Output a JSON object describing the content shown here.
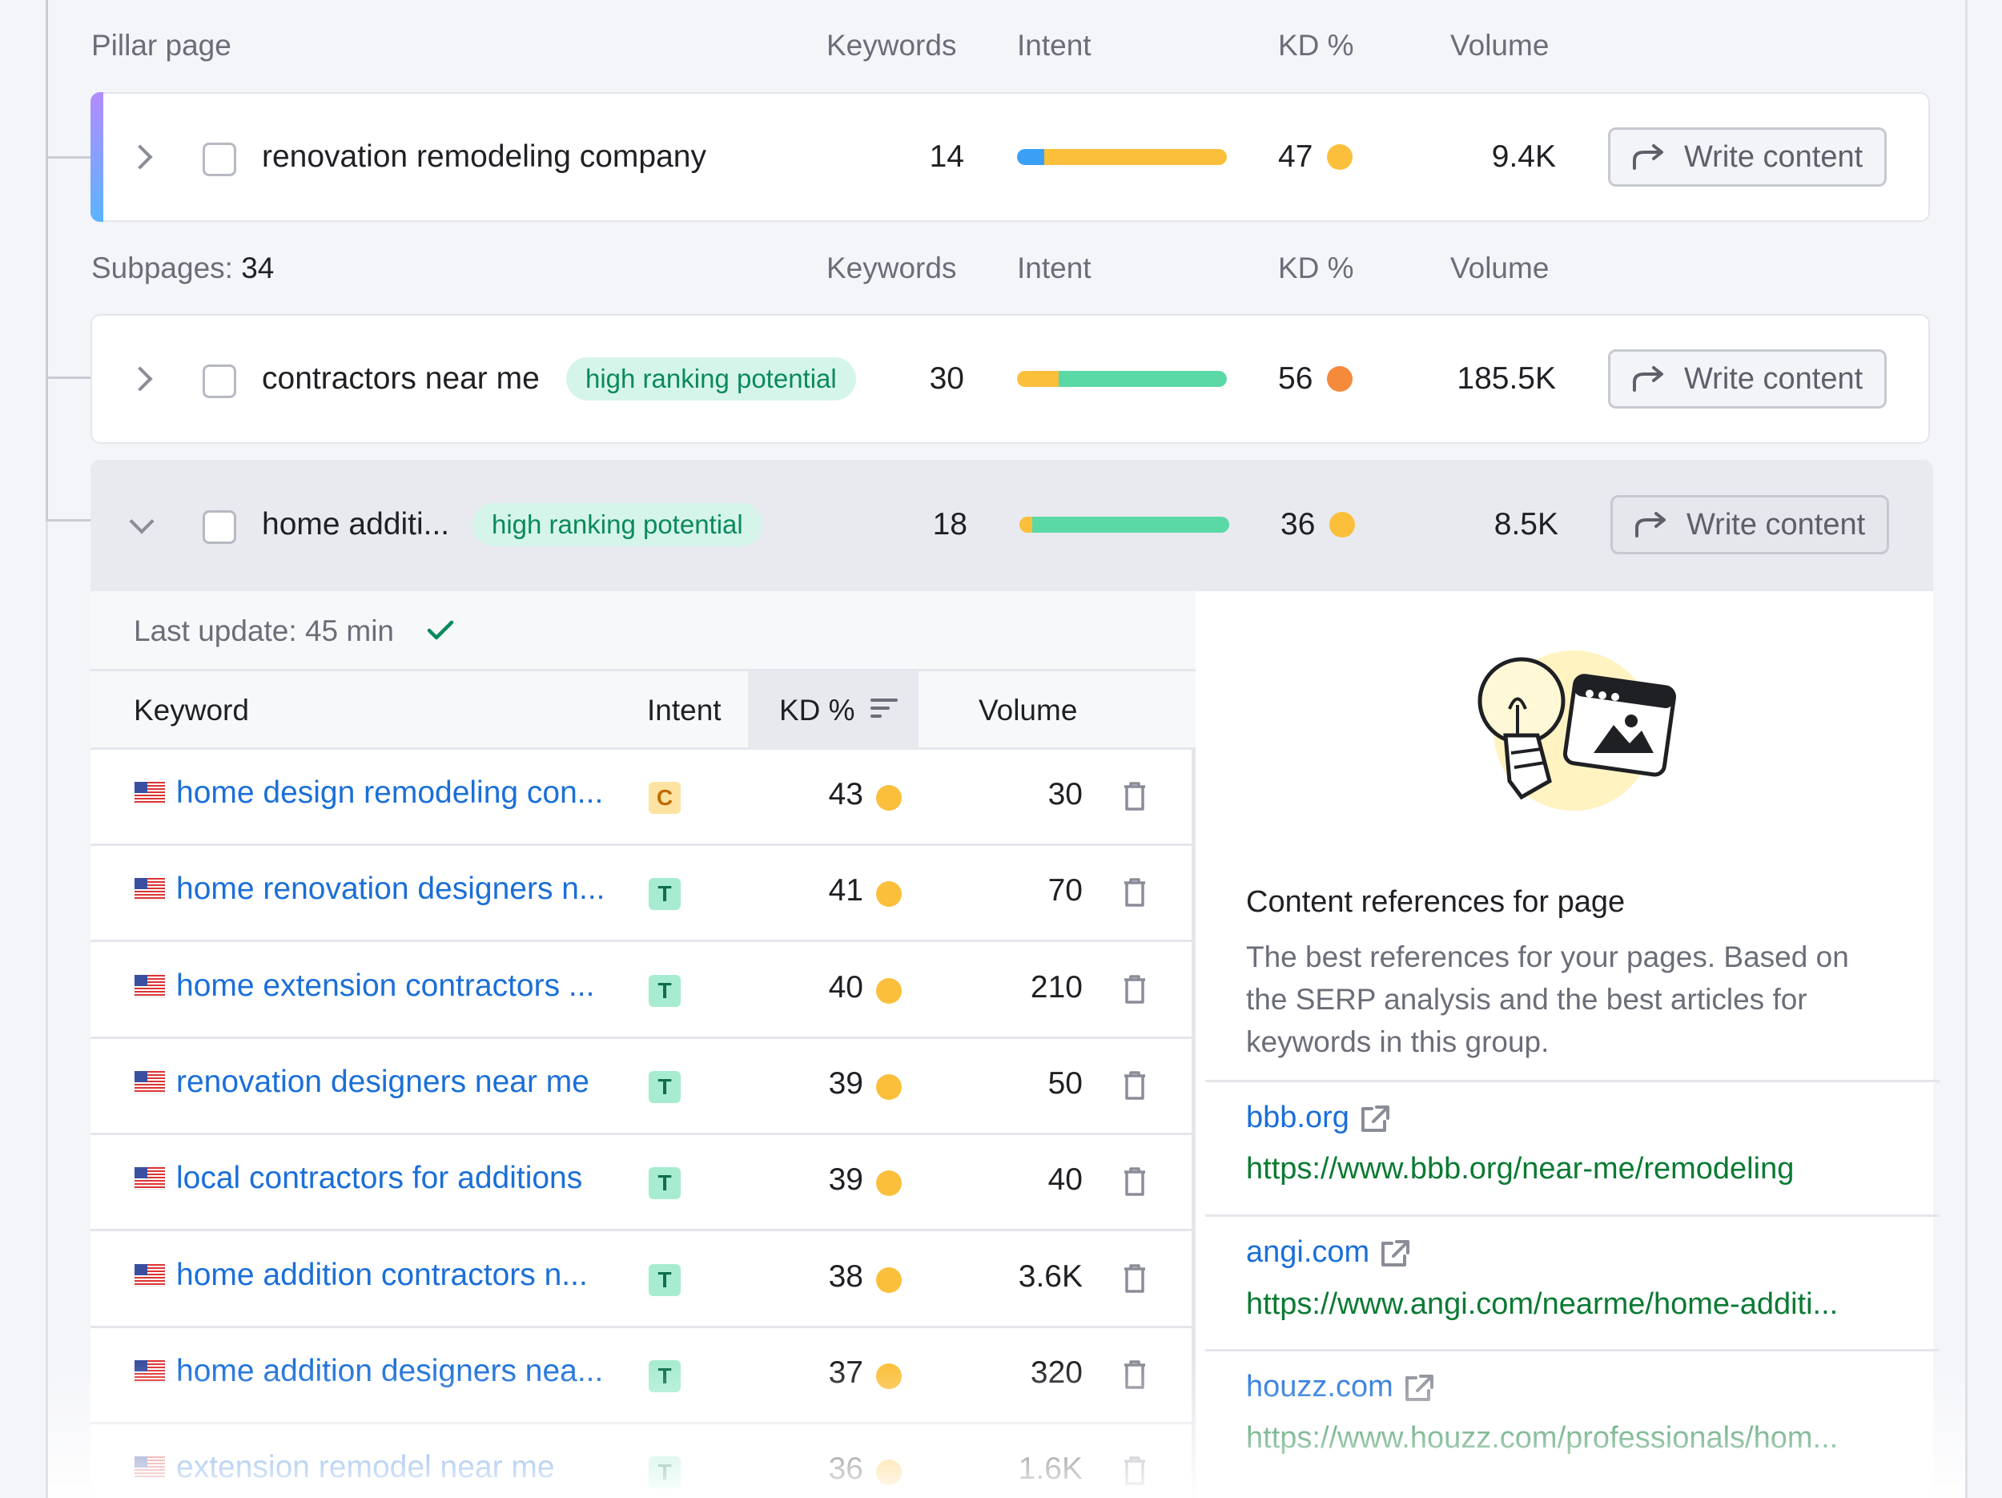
{
  "pillar_header": {
    "title": "Pillar page",
    "keywords": "Keywords",
    "intent": "Intent",
    "kd": "KD %",
    "volume": "Volume"
  },
  "pillar": {
    "name": "renovation remodeling company",
    "keywords": "14",
    "kd": "47",
    "volume": "9.4K",
    "intent_segments": [
      {
        "color": "#3aa0f5",
        "share": 0.13
      },
      {
        "color": "#fbbf3b",
        "share": 0.87
      }
    ],
    "kd_color": "#fbbf3b"
  },
  "sub_header": {
    "label": "Subpages:",
    "count": "34",
    "keywords": "Keywords",
    "intent": "Intent",
    "kd": "KD %",
    "volume": "Volume"
  },
  "subpages": [
    {
      "name": "contractors near me",
      "badge": "high ranking potential",
      "keywords": "30",
      "kd": "56",
      "volume": "185.5K",
      "intent_segments": [
        {
          "color": "#fbbf3b",
          "share": 0.2
        },
        {
          "color": "#5ad8a6",
          "share": 0.8
        }
      ],
      "kd_color": "#f58a3b"
    },
    {
      "name": "home additi...",
      "badge": "high ranking potential",
      "keywords": "18",
      "kd": "36",
      "volume": "8.5K",
      "intent_segments": [
        {
          "color": "#fbbf3b",
          "share": 0.06
        },
        {
          "color": "#5ad8a6",
          "share": 0.94
        }
      ],
      "kd_color": "#fbbf3b"
    }
  ],
  "write_content_label": "Write content",
  "expanded": {
    "last_update": "Last update: 45 min",
    "columns": {
      "keyword": "Keyword",
      "intent": "Intent",
      "kd": "KD %",
      "volume": "Volume"
    },
    "rows": [
      {
        "keyword": "home design remodeling con...",
        "intent": "C",
        "kd": "43",
        "volume": "30"
      },
      {
        "keyword": "home renovation designers n...",
        "intent": "T",
        "kd": "41",
        "volume": "70"
      },
      {
        "keyword": "home extension contractors ...",
        "intent": "T",
        "kd": "40",
        "volume": "210"
      },
      {
        "keyword": "renovation designers near me",
        "intent": "T",
        "kd": "39",
        "volume": "50"
      },
      {
        "keyword": "local contractors for additions",
        "intent": "T",
        "kd": "39",
        "volume": "40"
      },
      {
        "keyword": "home addition contractors n...",
        "intent": "T",
        "kd": "38",
        "volume": "3.6K"
      },
      {
        "keyword": "home addition designers nea...",
        "intent": "T",
        "kd": "37",
        "volume": "320"
      },
      {
        "keyword": "extension remodel near me",
        "intent": "T",
        "kd": "36",
        "volume": "1.6K"
      }
    ],
    "references": {
      "title": "Content references for page",
      "description": "The best references for your pages. Based on the SERP analysis and the best articles for keywords in this group.",
      "items": [
        {
          "domain": "bbb.org",
          "url": "https://www.bbb.org/near-me/remodeling"
        },
        {
          "domain": "angi.com",
          "url": "https://www.angi.com/nearme/home-additi..."
        },
        {
          "domain": "houzz.com",
          "url": "https://www.houzz.com/professionals/hom..."
        }
      ]
    }
  },
  "colors": {
    "link": "#1b6fd8",
    "url": "#0b7a33",
    "kd_yellow": "#fbbf3b",
    "kd_orange": "#f58a3b",
    "badge_bg": "#d6f5ea"
  }
}
